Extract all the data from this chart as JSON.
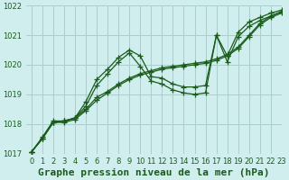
{
  "bg_color": "#d0eeee",
  "grid_color": "#aacfcf",
  "line_color": "#1a5c1a",
  "xlabel": "Graphe pression niveau de la mer (hPa)",
  "xlabel_color": "#1a5c1a",
  "xlim": [
    -0.5,
    23
  ],
  "ylim": [
    1017,
    1022
  ],
  "yticks": [
    1017,
    1018,
    1019,
    1020,
    1021,
    1022
  ],
  "xticks": [
    0,
    1,
    2,
    3,
    4,
    5,
    6,
    7,
    8,
    9,
    10,
    11,
    12,
    13,
    14,
    15,
    16,
    17,
    18,
    19,
    20,
    21,
    22,
    23
  ],
  "lines": [
    {
      "x": [
        0,
        1,
        2,
        3,
        4,
        5,
        6,
        7,
        8,
        9,
        10,
        11,
        12,
        13,
        14,
        15,
        16,
        17,
        18,
        19,
        20,
        21,
        22,
        23
      ],
      "y": [
        1017.05,
        1017.55,
        1018.1,
        1018.1,
        1018.2,
        1018.75,
        1019.5,
        1019.85,
        1020.25,
        1020.5,
        1020.3,
        1019.6,
        1019.55,
        1019.35,
        1019.25,
        1019.25,
        1019.3,
        1021.0,
        1020.3,
        1021.1,
        1021.45,
        1021.6,
        1021.75,
        1021.85
      ]
    },
    {
      "x": [
        0,
        1,
        2,
        3,
        4,
        5,
        6,
        7,
        8,
        9,
        10,
        11,
        12,
        13,
        14,
        15,
        16,
        17,
        18,
        19,
        20,
        21,
        22,
        23
      ],
      "y": [
        1017.05,
        1017.5,
        1018.05,
        1018.1,
        1018.2,
        1018.5,
        1018.9,
        1019.1,
        1019.35,
        1019.55,
        1019.7,
        1019.8,
        1019.9,
        1019.95,
        1020.0,
        1020.05,
        1020.1,
        1020.2,
        1020.35,
        1020.6,
        1021.0,
        1021.4,
        1021.65,
        1021.8
      ]
    },
    {
      "x": [
        0,
        1,
        2,
        3,
        4,
        5,
        6,
        7,
        8,
        9,
        10,
        11,
        12,
        13,
        14,
        15,
        16,
        17,
        18,
        19,
        20,
        21,
        22,
        23
      ],
      "y": [
        1017.05,
        1017.5,
        1018.05,
        1018.05,
        1018.15,
        1018.45,
        1018.8,
        1019.05,
        1019.3,
        1019.5,
        1019.65,
        1019.75,
        1019.85,
        1019.9,
        1019.95,
        1020.0,
        1020.05,
        1020.15,
        1020.3,
        1020.55,
        1020.95,
        1021.35,
        1021.6,
        1021.75
      ]
    },
    {
      "x": [
        0,
        1,
        2,
        3,
        4,
        5,
        6,
        7,
        8,
        9,
        10,
        11,
        12,
        13,
        14,
        15,
        16,
        17,
        18,
        19,
        20,
        21,
        22,
        23
      ],
      "y": [
        1017.05,
        1017.5,
        1018.05,
        1018.1,
        1018.2,
        1018.6,
        1019.3,
        1019.7,
        1020.1,
        1020.4,
        1019.95,
        1019.45,
        1019.35,
        1019.15,
        1019.05,
        1019.0,
        1019.05,
        1021.0,
        1020.1,
        1020.95,
        1021.3,
        1021.5,
        1021.65,
        1021.8
      ]
    }
  ],
  "marker_style": "+",
  "marker_size": 4,
  "line_width": 0.9,
  "tick_label_fontsize": 6,
  "xlabel_fontsize": 8
}
